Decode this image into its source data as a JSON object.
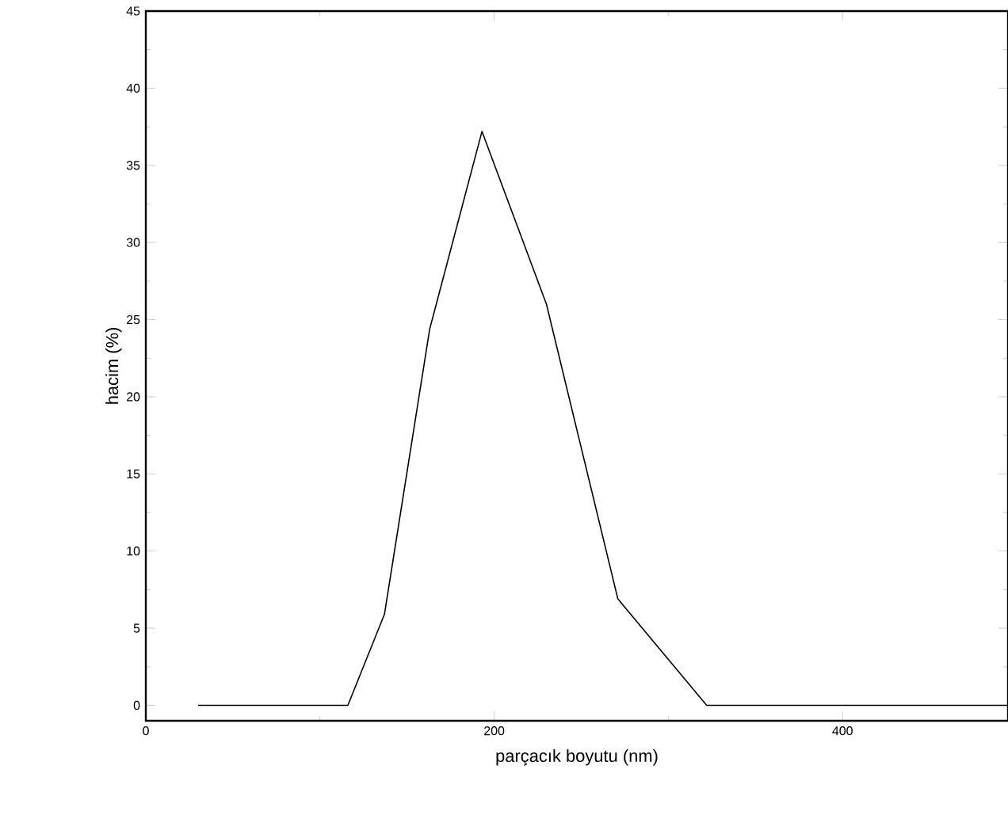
{
  "chart_data": {
    "type": "line",
    "xlabel": "parçacık boyutu (nm)",
    "ylabel": "hacim (%)",
    "x": [
      30,
      116,
      137,
      163,
      193,
      230,
      271,
      322,
      495
    ],
    "values": [
      0,
      0,
      5.9,
      24.4,
      37.2,
      26,
      6.9,
      0,
      0
    ],
    "color": "#000000",
    "xlim": [
      0,
      495
    ],
    "ylim": [
      -1,
      45
    ],
    "xticks": [
      0,
      200,
      400
    ],
    "yticks": [
      0,
      5,
      10,
      15,
      20,
      25,
      30,
      35,
      40,
      45
    ],
    "grid": false,
    "marker": "none",
    "line_style": "solid"
  }
}
